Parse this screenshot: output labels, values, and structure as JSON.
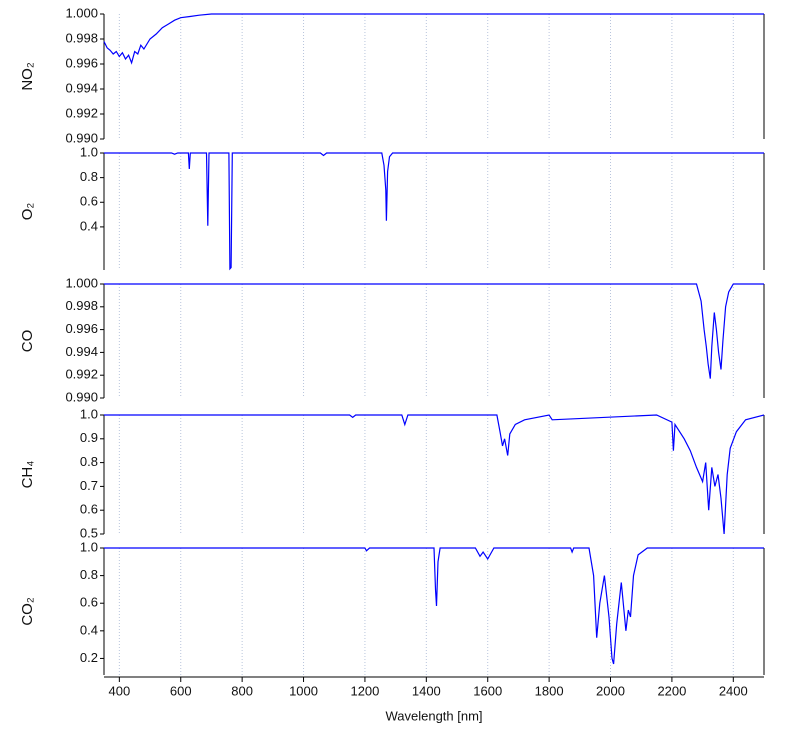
{
  "chart_data": [
    {
      "type": "line",
      "ylabel": "NO₂",
      "color": "#0000ff",
      "x": [
        350,
        360,
        370,
        380,
        390,
        400,
        410,
        420,
        430,
        440,
        450,
        460,
        470,
        480,
        500,
        520,
        540,
        560,
        580,
        600,
        630,
        660,
        700,
        800,
        2500
      ],
      "values": [
        0.9978,
        0.9973,
        0.9971,
        0.9968,
        0.997,
        0.9966,
        0.9969,
        0.9964,
        0.9967,
        0.9961,
        0.997,
        0.9968,
        0.9975,
        0.9972,
        0.998,
        0.9984,
        0.9989,
        0.9992,
        0.9995,
        0.9997,
        0.9998,
        0.9999,
        1.0,
        1.0,
        1.0
      ],
      "ylim": [
        0.99,
        1.0
      ],
      "yticks": [
        {
          "value": 0.99,
          "label": "0.990"
        },
        0.992,
        0.994,
        0.996,
        0.998,
        {
          "value": 1.0,
          "label": "1.000"
        }
      ]
    },
    {
      "type": "line",
      "ylabel": "O₂",
      "color": "#0000ff",
      "x": [
        350,
        570,
        580,
        590,
        625,
        628,
        631,
        684,
        688,
        692,
        757,
        760,
        764,
        768,
        1055,
        1065,
        1075,
        1255,
        1262,
        1268,
        1270,
        1274,
        1280,
        1290,
        2500
      ],
      "values": [
        1.0,
        1.0,
        0.99,
        1.0,
        1.0,
        0.87,
        1.0,
        1.0,
        0.41,
        1.0,
        1.0,
        0.06,
        0.07,
        1.0,
        1.0,
        0.98,
        1.0,
        1.0,
        0.9,
        0.7,
        0.45,
        0.85,
        0.97,
        1.0,
        1.0
      ],
      "ylim": [
        0.05,
        1.0
      ],
      "yticks": [
        0.4,
        0.6,
        0.8,
        {
          "value": 1.0,
          "label": "1.0"
        }
      ]
    },
    {
      "type": "line",
      "ylabel": "CO",
      "color": "#0000ff",
      "x": [
        350,
        2280,
        2295,
        2305,
        2312,
        2318,
        2325,
        2330,
        2338,
        2345,
        2352,
        2360,
        2366,
        2375,
        2385,
        2400,
        2500
      ],
      "values": [
        1.0,
        1.0,
        0.9985,
        0.996,
        0.9945,
        0.993,
        0.9917,
        0.9945,
        0.9975,
        0.996,
        0.994,
        0.9925,
        0.995,
        0.998,
        0.9993,
        1.0,
        1.0
      ],
      "ylim": [
        0.99,
        1.0
      ],
      "yticks": [
        {
          "value": 0.99,
          "label": "0.990"
        },
        0.992,
        0.994,
        0.996,
        0.998,
        {
          "value": 1.0,
          "label": "1.000"
        }
      ]
    },
    {
      "type": "line",
      "ylabel": "CH₄",
      "color": "#0000ff",
      "x": [
        350,
        1150,
        1160,
        1170,
        1320,
        1330,
        1340,
        1630,
        1640,
        1648,
        1655,
        1665,
        1672,
        1690,
        1720,
        1800,
        1810,
        2150,
        2200,
        2205,
        2210,
        2240,
        2260,
        2280,
        2300,
        2310,
        2320,
        2330,
        2340,
        2350,
        2360,
        2370,
        2380,
        2390,
        2410,
        2440,
        2500
      ],
      "values": [
        1.0,
        1.0,
        0.99,
        1.0,
        1.0,
        0.96,
        1.0,
        1.0,
        0.93,
        0.87,
        0.9,
        0.83,
        0.92,
        0.96,
        0.98,
        1.0,
        0.98,
        1.0,
        0.97,
        0.85,
        0.96,
        0.9,
        0.85,
        0.78,
        0.72,
        0.8,
        0.6,
        0.78,
        0.7,
        0.75,
        0.65,
        0.5,
        0.75,
        0.86,
        0.93,
        0.98,
        1.0
      ],
      "ylim": [
        0.5,
        1.0
      ],
      "yticks": [
        0.5,
        0.6,
        0.7,
        0.8,
        0.9,
        {
          "value": 1.0,
          "label": "1.0"
        }
      ]
    },
    {
      "type": "line",
      "ylabel": "CO₂",
      "color": "#0000ff",
      "x": [
        350,
        1200,
        1205,
        1215,
        1425,
        1430,
        1433,
        1438,
        1445,
        1560,
        1575,
        1585,
        1600,
        1610,
        1620,
        1870,
        1875,
        1880,
        1930,
        1945,
        1955,
        1965,
        1980,
        1995,
        2005,
        2010,
        2020,
        2035,
        2050,
        2058,
        2065,
        2075,
        2090,
        2120,
        2500
      ],
      "values": [
        1.0,
        1.0,
        0.98,
        1.0,
        1.0,
        0.7,
        0.58,
        0.9,
        1.0,
        1.0,
        0.94,
        0.97,
        0.92,
        0.96,
        1.0,
        1.0,
        0.97,
        1.0,
        1.0,
        0.8,
        0.35,
        0.6,
        0.8,
        0.5,
        0.2,
        0.16,
        0.45,
        0.75,
        0.4,
        0.55,
        0.5,
        0.8,
        0.95,
        1.0,
        1.0
      ],
      "ylim": [
        0.08,
        1.0
      ],
      "yticks": [
        0.2,
        0.4,
        0.6,
        0.8,
        {
          "value": 1.0,
          "label": "1.0"
        }
      ],
      "xlabel": "Wavelength [nm]",
      "xlim": [
        350,
        2500
      ],
      "xticks": [
        400,
        600,
        800,
        1000,
        1200,
        1400,
        1600,
        1800,
        2000,
        2200,
        2400
      ]
    }
  ]
}
